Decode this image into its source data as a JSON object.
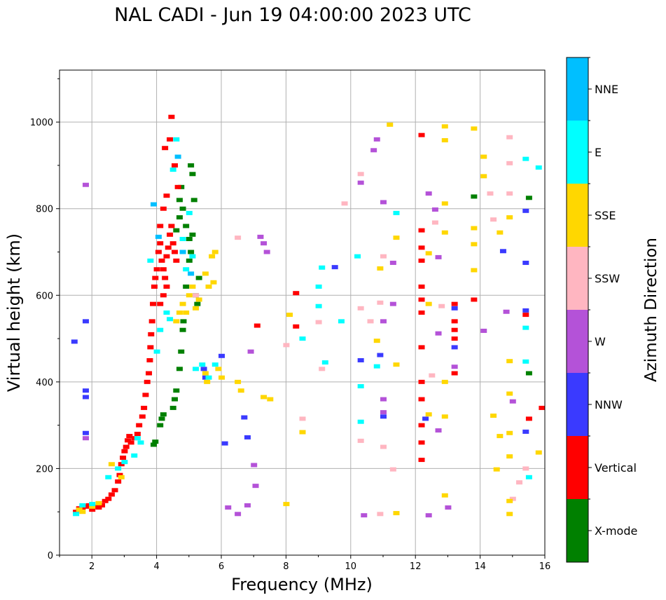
{
  "chart_data": {
    "type": "scatter",
    "title": "NAL CADI - Jun 19 04:00:00 2023 UTC",
    "xlabel": "Frequency (MHz)",
    "ylabel": "Virtual height (km)",
    "xlim": [
      1,
      16
    ],
    "ylim": [
      0,
      1120
    ],
    "xticks": [
      "2",
      "4",
      "6",
      "8",
      "10",
      "12",
      "14",
      "16"
    ],
    "yticks": [
      "0",
      "200",
      "400",
      "600",
      "800",
      "1000"
    ],
    "grid": true,
    "colorbar": {
      "label": "Azimuth Direction",
      "categories": [
        "X-mode",
        "Vertical",
        "NNW",
        "W",
        "SSW",
        "SSE",
        "E",
        "NNE"
      ],
      "colors": [
        "#008000",
        "#ff0000",
        "#3a3aff",
        "#b452d8",
        "#ffb6c1",
        "#ffd700",
        "#00ffff",
        "#00bfff"
      ]
    },
    "series": [
      {
        "name": "X-mode",
        "points": [
          [
            3.9,
            255
          ],
          [
            3.95,
            262
          ],
          [
            4.1,
            300
          ],
          [
            4.15,
            315
          ],
          [
            4.2,
            325
          ],
          [
            4.5,
            340
          ],
          [
            4.55,
            360
          ],
          [
            4.6,
            380
          ],
          [
            4.7,
            430
          ],
          [
            4.75,
            470
          ],
          [
            4.8,
            520
          ],
          [
            4.82,
            540
          ],
          [
            4.9,
            620
          ],
          [
            5.0,
            680
          ],
          [
            5.05,
            700
          ],
          [
            4.6,
            750
          ],
          [
            4.7,
            780
          ],
          [
            4.8,
            800
          ],
          [
            4.9,
            760
          ],
          [
            5.0,
            730
          ],
          [
            5.1,
            740
          ],
          [
            4.7,
            820
          ],
          [
            4.75,
            850
          ],
          [
            5.05,
            900
          ],
          [
            5.1,
            880
          ],
          [
            5.15,
            820
          ],
          [
            5.2,
            600
          ],
          [
            5.3,
            640
          ],
          [
            5.25,
            580
          ],
          [
            15.5,
            420
          ],
          [
            15.5,
            825
          ],
          [
            13.8,
            828
          ]
        ]
      },
      {
        "name": "Vertical",
        "points": [
          [
            1.5,
            100
          ],
          [
            1.6,
            108
          ],
          [
            1.7,
            110
          ],
          [
            1.8,
            112
          ],
          [
            1.9,
            115
          ],
          [
            2.0,
            105
          ],
          [
            2.1,
            112
          ],
          [
            2.2,
            110
          ],
          [
            2.3,
            115
          ],
          [
            2.4,
            125
          ],
          [
            2.5,
            130
          ],
          [
            2.6,
            140
          ],
          [
            2.7,
            150
          ],
          [
            2.8,
            170
          ],
          [
            2.85,
            185
          ],
          [
            2.9,
            210
          ],
          [
            2.95,
            225
          ],
          [
            3.0,
            240
          ],
          [
            3.05,
            250
          ],
          [
            3.1,
            265
          ],
          [
            3.15,
            275
          ],
          [
            3.2,
            260
          ],
          [
            3.3,
            270
          ],
          [
            3.4,
            280
          ],
          [
            3.45,
            300
          ],
          [
            3.55,
            320
          ],
          [
            3.6,
            340
          ],
          [
            3.65,
            370
          ],
          [
            3.7,
            400
          ],
          [
            3.75,
            420
          ],
          [
            3.78,
            450
          ],
          [
            3.8,
            480
          ],
          [
            3.82,
            510
          ],
          [
            3.85,
            540
          ],
          [
            3.88,
            580
          ],
          [
            3.92,
            620
          ],
          [
            3.95,
            640
          ],
          [
            4.0,
            660
          ],
          [
            4.05,
            700
          ],
          [
            4.1,
            720
          ],
          [
            4.15,
            680
          ],
          [
            4.2,
            660
          ],
          [
            4.25,
            640
          ],
          [
            4.3,
            690
          ],
          [
            4.35,
            710
          ],
          [
            4.4,
            740
          ],
          [
            4.45,
            760
          ],
          [
            4.5,
            720
          ],
          [
            4.55,
            700
          ],
          [
            4.6,
            680
          ],
          [
            4.1,
            580
          ],
          [
            4.2,
            600
          ],
          [
            4.3,
            620
          ],
          [
            4.1,
            760
          ],
          [
            4.2,
            800
          ],
          [
            4.3,
            830
          ],
          [
            4.25,
            940
          ],
          [
            4.4,
            960
          ],
          [
            4.45,
            1012
          ],
          [
            4.55,
            900
          ],
          [
            4.65,
            850
          ],
          [
            12.18,
            970
          ],
          [
            12.18,
            750
          ],
          [
            12.18,
            710
          ],
          [
            12.18,
            680
          ],
          [
            12.18,
            620
          ],
          [
            12.18,
            590
          ],
          [
            12.18,
            560
          ],
          [
            12.18,
            480
          ],
          [
            12.18,
            400
          ],
          [
            12.18,
            360
          ],
          [
            12.18,
            300
          ],
          [
            12.18,
            260
          ],
          [
            12.18,
            220
          ],
          [
            13.2,
            580
          ],
          [
            13.2,
            540
          ],
          [
            13.2,
            520
          ],
          [
            13.2,
            500
          ],
          [
            13.2,
            420
          ],
          [
            8.3,
            605
          ],
          [
            8.3,
            528
          ],
          [
            7.1,
            530
          ],
          [
            15.4,
            555
          ],
          [
            15.5,
            315
          ],
          [
            15.9,
            340
          ],
          [
            13.8,
            590
          ]
        ]
      },
      {
        "name": "NNW",
        "points": [
          [
            1.45,
            493
          ],
          [
            1.8,
            540
          ],
          [
            1.8,
            380
          ],
          [
            1.8,
            365
          ],
          [
            1.8,
            282
          ],
          [
            5.45,
            430
          ],
          [
            5.5,
            410
          ],
          [
            6.0,
            460
          ],
          [
            6.1,
            258
          ],
          [
            6.7,
            318
          ],
          [
            6.8,
            272
          ],
          [
            10.3,
            450
          ],
          [
            10.9,
            462
          ],
          [
            11.0,
            320
          ],
          [
            12.3,
            315
          ],
          [
            13.2,
            570
          ],
          [
            13.2,
            480
          ],
          [
            14.7,
            702
          ],
          [
            15.4,
            795
          ],
          [
            15.4,
            675
          ],
          [
            15.4,
            565
          ],
          [
            15.4,
            285
          ],
          [
            9.5,
            665
          ]
        ]
      },
      {
        "name": "W",
        "points": [
          [
            1.8,
            855
          ],
          [
            1.8,
            270
          ],
          [
            6.2,
            110
          ],
          [
            6.5,
            95
          ],
          [
            6.8,
            115
          ],
          [
            6.9,
            470
          ],
          [
            7.0,
            208
          ],
          [
            7.05,
            160
          ],
          [
            7.2,
            735
          ],
          [
            7.3,
            720
          ],
          [
            7.4,
            700
          ],
          [
            10.7,
            935
          ],
          [
            10.8,
            960
          ],
          [
            10.3,
            860
          ],
          [
            11.0,
            815
          ],
          [
            11.0,
            540
          ],
          [
            11.0,
            360
          ],
          [
            11.0,
            330
          ],
          [
            11.3,
            675
          ],
          [
            11.3,
            580
          ],
          [
            12.4,
            835
          ],
          [
            12.4,
            92
          ],
          [
            12.6,
            798
          ],
          [
            12.7,
            688
          ],
          [
            12.7,
            512
          ],
          [
            12.7,
            288
          ],
          [
            13.2,
            435
          ],
          [
            13.0,
            110
          ],
          [
            14.1,
            518
          ],
          [
            14.8,
            562
          ],
          [
            15.0,
            355
          ],
          [
            10.4,
            92
          ]
        ]
      },
      {
        "name": "SSW",
        "points": [
          [
            5.2,
            600
          ],
          [
            6.5,
            733
          ],
          [
            8.0,
            485
          ],
          [
            8.5,
            315
          ],
          [
            9.1,
            430
          ],
          [
            9.0,
            538
          ],
          [
            10.3,
            880
          ],
          [
            10.3,
            570
          ],
          [
            10.3,
            264
          ],
          [
            10.6,
            540
          ],
          [
            10.9,
            583
          ],
          [
            11.0,
            250
          ],
          [
            11.3,
            198
          ],
          [
            12.5,
            415
          ],
          [
            12.6,
            768
          ],
          [
            12.8,
            575
          ],
          [
            14.3,
            835
          ],
          [
            14.4,
            775
          ],
          [
            14.9,
            965
          ],
          [
            14.9,
            905
          ],
          [
            14.9,
            835
          ],
          [
            15.0,
            130
          ],
          [
            15.2,
            168
          ],
          [
            15.4,
            200
          ],
          [
            9.8,
            812
          ],
          [
            10.9,
            95
          ],
          [
            11.0,
            690
          ]
        ]
      },
      {
        "name": "SSE",
        "points": [
          [
            1.6,
            105
          ],
          [
            1.7,
            100
          ],
          [
            2.0,
            112
          ],
          [
            2.2,
            120
          ],
          [
            2.6,
            210
          ],
          [
            2.9,
            180
          ],
          [
            4.6,
            540
          ],
          [
            4.7,
            560
          ],
          [
            4.8,
            580
          ],
          [
            4.9,
            560
          ],
          [
            5.0,
            600
          ],
          [
            5.1,
            620
          ],
          [
            5.2,
            570
          ],
          [
            5.3,
            590
          ],
          [
            5.5,
            650
          ],
          [
            5.6,
            620
          ],
          [
            5.7,
            690
          ],
          [
            5.8,
            700
          ],
          [
            5.75,
            630
          ],
          [
            5.5,
            420
          ],
          [
            5.55,
            400
          ],
          [
            5.9,
            430
          ],
          [
            6.0,
            410
          ],
          [
            6.5,
            400
          ],
          [
            6.6,
            380
          ],
          [
            7.3,
            365
          ],
          [
            7.5,
            360
          ],
          [
            8.0,
            118
          ],
          [
            8.1,
            555
          ],
          [
            8.5,
            284
          ],
          [
            10.8,
            495
          ],
          [
            10.9,
            662
          ],
          [
            11.2,
            994
          ],
          [
            11.4,
            440
          ],
          [
            11.4,
            733
          ],
          [
            11.4,
            97
          ],
          [
            12.4,
            697
          ],
          [
            12.4,
            580
          ],
          [
            12.4,
            325
          ],
          [
            12.9,
            990
          ],
          [
            12.9,
            958
          ],
          [
            12.9,
            812
          ],
          [
            12.9,
            745
          ],
          [
            12.9,
            400
          ],
          [
            12.9,
            320
          ],
          [
            12.9,
            138
          ],
          [
            13.8,
            985
          ],
          [
            13.8,
            755
          ],
          [
            13.8,
            718
          ],
          [
            13.8,
            658
          ],
          [
            14.1,
            920
          ],
          [
            14.1,
            875
          ],
          [
            14.6,
            745
          ],
          [
            14.6,
            275
          ],
          [
            14.9,
            780
          ],
          [
            14.9,
            448
          ],
          [
            14.9,
            373
          ],
          [
            14.9,
            282
          ],
          [
            14.9,
            228
          ],
          [
            14.9,
            125
          ],
          [
            14.9,
            95
          ],
          [
            14.5,
            198
          ],
          [
            14.4,
            322
          ],
          [
            15.8,
            237
          ]
        ]
      },
      {
        "name": "E",
        "points": [
          [
            1.5,
            95
          ],
          [
            1.7,
            115
          ],
          [
            2.0,
            118
          ],
          [
            2.5,
            180
          ],
          [
            2.8,
            200
          ],
          [
            3.0,
            215
          ],
          [
            3.3,
            230
          ],
          [
            3.4,
            270
          ],
          [
            3.5,
            260
          ],
          [
            3.8,
            680
          ],
          [
            4.0,
            470
          ],
          [
            4.1,
            520
          ],
          [
            4.3,
            560
          ],
          [
            4.4,
            545
          ],
          [
            4.5,
            890
          ],
          [
            4.6,
            960
          ],
          [
            4.8,
            730
          ],
          [
            4.9,
            660
          ],
          [
            5.0,
            790
          ],
          [
            5.1,
            690
          ],
          [
            5.2,
            430
          ],
          [
            5.4,
            440
          ],
          [
            5.6,
            410
          ],
          [
            5.8,
            440
          ],
          [
            9.0,
            620
          ],
          [
            9.0,
            575
          ],
          [
            9.1,
            664
          ],
          [
            9.2,
            445
          ],
          [
            9.7,
            540
          ],
          [
            10.2,
            690
          ],
          [
            10.3,
            390
          ],
          [
            10.3,
            308
          ],
          [
            10.8,
            436
          ],
          [
            11.4,
            790
          ],
          [
            15.4,
            915
          ],
          [
            15.4,
            525
          ],
          [
            15.4,
            447
          ],
          [
            15.5,
            180
          ],
          [
            15.8,
            895
          ],
          [
            8.5,
            500
          ]
        ]
      },
      {
        "name": "NNE",
        "points": [
          [
            3.9,
            810
          ],
          [
            4.05,
            735
          ],
          [
            4.65,
            920
          ],
          [
            4.8,
            700
          ],
          [
            5.05,
            650
          ]
        ]
      }
    ]
  }
}
